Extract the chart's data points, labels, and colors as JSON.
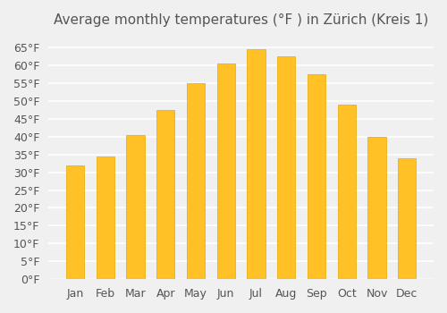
{
  "title": "Average monthly temperatures (°F ) in Zürich (Kreis 1)",
  "months": [
    "Jan",
    "Feb",
    "Mar",
    "Apr",
    "May",
    "Jun",
    "Jul",
    "Aug",
    "Sep",
    "Oct",
    "Nov",
    "Dec"
  ],
  "values": [
    32,
    34.5,
    40.5,
    47.5,
    55,
    60.5,
    64.5,
    62.5,
    57.5,
    49,
    40,
    34
  ],
  "bar_color": "#FFC125",
  "bar_edge_color": "#E8A800",
  "background_color": "#F0F0F0",
  "grid_color": "#FFFFFF",
  "yticks": [
    0,
    5,
    10,
    15,
    20,
    25,
    30,
    35,
    40,
    45,
    50,
    55,
    60,
    65
  ],
  "ylim": [
    0,
    68
  ],
  "title_fontsize": 11,
  "tick_fontsize": 9,
  "font_color": "#555555"
}
